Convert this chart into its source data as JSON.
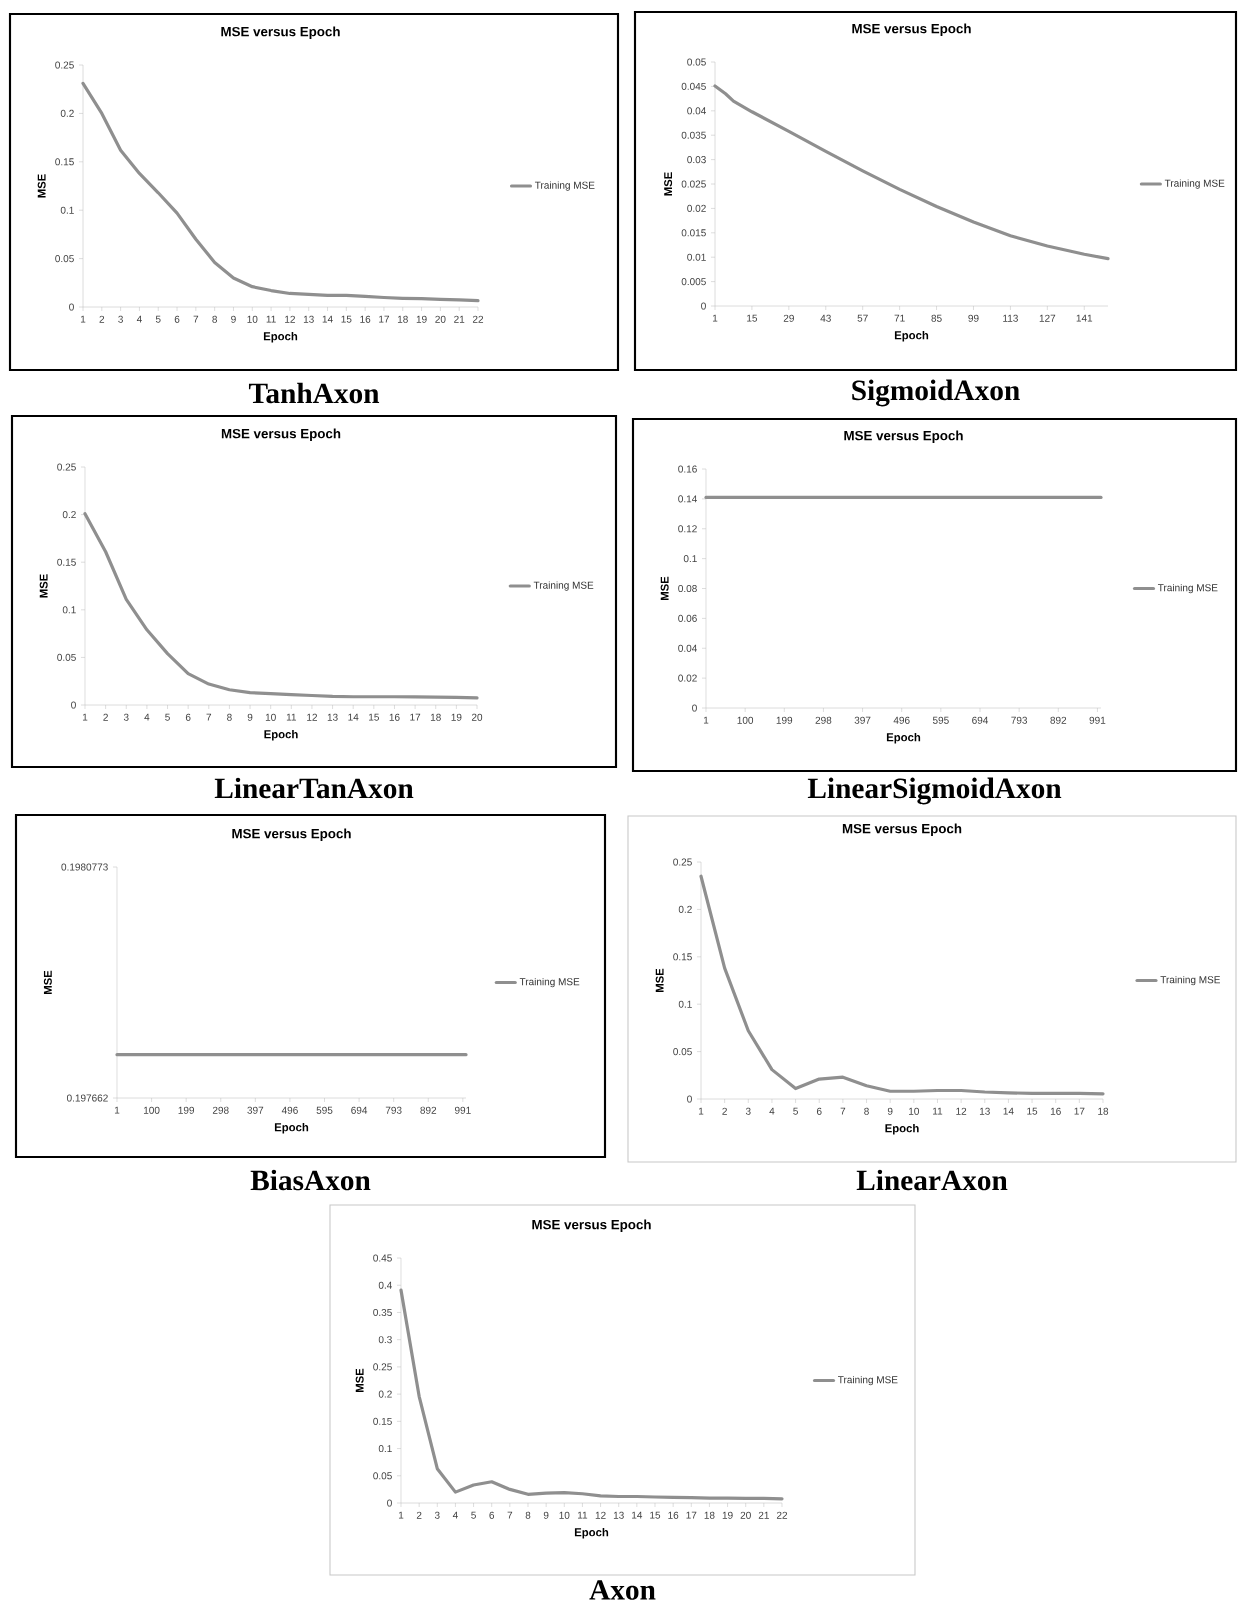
{
  "chart_data": [
    {
      "type": "line",
      "title": "MSE versus Epoch",
      "xlabel": "Epoch",
      "ylabel": "MSE",
      "legend": "right",
      "annotations": [
        "TanhAxon"
      ],
      "categories": [
        "1",
        "2",
        "3",
        "4",
        "5",
        "6",
        "7",
        "8",
        "9",
        "10",
        "11",
        "12",
        "13",
        "14",
        "15",
        "16",
        "17",
        "18",
        "19",
        "20",
        "21",
        "22"
      ],
      "ylim": [
        0,
        0.25
      ],
      "yticks": [
        0,
        0.05,
        0.1,
        0.15,
        0.2,
        0.25
      ],
      "series": [
        {
          "name": "Training MSE",
          "color": "#8f8f8f",
          "values": [
            0.231,
            0.2,
            0.162,
            0.138,
            0.118,
            0.097,
            0.07,
            0.046,
            0.03,
            0.021,
            0.017,
            0.014,
            0.013,
            0.012,
            0.012,
            0.011,
            0.0098,
            0.009,
            0.0086,
            0.0078,
            0.0074,
            0.0065
          ]
        }
      ]
    },
    {
      "type": "line",
      "title": "MSE versus Epoch",
      "xlabel": "Epoch",
      "ylabel": "MSE",
      "legend": "right",
      "annotations": [
        "SigmoidAxon"
      ],
      "x": [
        1,
        5,
        8,
        15,
        29,
        43,
        57,
        71,
        85,
        99,
        113,
        127,
        141,
        150
      ],
      "xlim": [
        1,
        150
      ],
      "xticks": [
        1,
        15,
        29,
        43,
        57,
        71,
        85,
        99,
        113,
        127,
        141
      ],
      "ylim": [
        0,
        0.05
      ],
      "yticks": [
        0,
        0.005,
        0.01,
        0.015,
        0.02,
        0.025,
        0.03,
        0.035,
        0.04,
        0.045,
        0.05
      ],
      "series": [
        {
          "name": "Training MSE",
          "color": "#8f8f8f",
          "values": [
            0.0451,
            0.0435,
            0.042,
            0.0398,
            0.0358,
            0.0317,
            0.0277,
            0.0239,
            0.0204,
            0.0172,
            0.0144,
            0.0123,
            0.0106,
            0.0097
          ]
        }
      ]
    },
    {
      "type": "line",
      "title": "MSE versus Epoch",
      "xlabel": "Epoch",
      "ylabel": "MSE",
      "legend": "right",
      "annotations": [
        "LinearTanAxon"
      ],
      "categories": [
        "1",
        "2",
        "3",
        "4",
        "5",
        "6",
        "7",
        "8",
        "9",
        "10",
        "11",
        "12",
        "13",
        "14",
        "15",
        "16",
        "17",
        "18",
        "19",
        "20"
      ],
      "ylim": [
        0,
        0.25
      ],
      "yticks": [
        0,
        0.05,
        0.1,
        0.15,
        0.2,
        0.25
      ],
      "series": [
        {
          "name": "Training MSE",
          "color": "#8f8f8f",
          "values": [
            0.201,
            0.161,
            0.111,
            0.079,
            0.054,
            0.033,
            0.022,
            0.016,
            0.013,
            0.012,
            0.011,
            0.01,
            0.0091,
            0.0087,
            0.0087,
            0.0087,
            0.0085,
            0.0083,
            0.008,
            0.0075
          ]
        }
      ]
    },
    {
      "type": "line",
      "title": "MSE versus Epoch",
      "xlabel": "Epoch",
      "ylabel": "MSE",
      "legend": "right",
      "annotations": [
        "LinearSigmoidAxon"
      ],
      "x": [
        1,
        1000
      ],
      "xlim": [
        1,
        1000
      ],
      "xticks": [
        1,
        100,
        199,
        298,
        397,
        496,
        595,
        694,
        793,
        892,
        991
      ],
      "ylim": [
        0,
        0.16
      ],
      "yticks": [
        0,
        0.02,
        0.04,
        0.06,
        0.08,
        0.1,
        0.12,
        0.14,
        0.16
      ],
      "series": [
        {
          "name": "Training MSE",
          "color": "#8f8f8f",
          "values": [
            0.141,
            0.141
          ]
        }
      ]
    },
    {
      "type": "line",
      "title": "MSE versus Epoch",
      "xlabel": "Epoch",
      "ylabel": "MSE",
      "legend": "right",
      "annotations": [
        "BiasAxon"
      ],
      "x": [
        1,
        1000
      ],
      "xlim": [
        1,
        1000
      ],
      "xticks": [
        1,
        100,
        199,
        298,
        397,
        496,
        595,
        694,
        793,
        892,
        991
      ],
      "ylim": [
        0.197662,
        0.1980773
      ],
      "yticks": [
        0.197662,
        0.1980773
      ],
      "series": [
        {
          "name": "Training MSE",
          "color": "#8f8f8f",
          "values": [
            0.19774,
            0.19774
          ]
        }
      ]
    },
    {
      "type": "line",
      "title": "MSE versus Epoch",
      "xlabel": "Epoch",
      "ylabel": "MSE",
      "legend": "right",
      "annotations": [
        "LinearAxon"
      ],
      "categories": [
        "1",
        "2",
        "3",
        "4",
        "5",
        "6",
        "7",
        "8",
        "9",
        "10",
        "11",
        "12",
        "13",
        "14",
        "15",
        "16",
        "17",
        "18"
      ],
      "ylim": [
        0,
        0.25
      ],
      "yticks": [
        0,
        0.05,
        0.1,
        0.15,
        0.2,
        0.25
      ],
      "series": [
        {
          "name": "Training MSE",
          "color": "#8f8f8f",
          "values": [
            0.235,
            0.138,
            0.072,
            0.031,
            0.011,
            0.021,
            0.023,
            0.014,
            0.0082,
            0.0082,
            0.009,
            0.009,
            0.0074,
            0.0065,
            0.006,
            0.006,
            0.006,
            0.0055
          ]
        }
      ]
    },
    {
      "type": "line",
      "title": "MSE versus Epoch",
      "xlabel": "Epoch",
      "ylabel": "MSE",
      "legend": "right",
      "annotations": [
        "Axon"
      ],
      "categories": [
        "1",
        "2",
        "3",
        "4",
        "5",
        "6",
        "7",
        "8",
        "9",
        "10",
        "11",
        "12",
        "13",
        "14",
        "15",
        "16",
        "17",
        "18",
        "19",
        "20",
        "21",
        "22"
      ],
      "ylim": [
        0,
        0.45
      ],
      "yticks": [
        0,
        0.05,
        0.1,
        0.15,
        0.2,
        0.25,
        0.3,
        0.35,
        0.4,
        0.45
      ],
      "series": [
        {
          "name": "Training MSE",
          "color": "#8f8f8f",
          "values": [
            0.391,
            0.196,
            0.063,
            0.02,
            0.033,
            0.039,
            0.025,
            0.016,
            0.018,
            0.019,
            0.017,
            0.013,
            0.012,
            0.012,
            0.011,
            0.0105,
            0.0098,
            0.0091,
            0.0091,
            0.0084,
            0.0084,
            0.0077
          ]
        }
      ]
    }
  ]
}
